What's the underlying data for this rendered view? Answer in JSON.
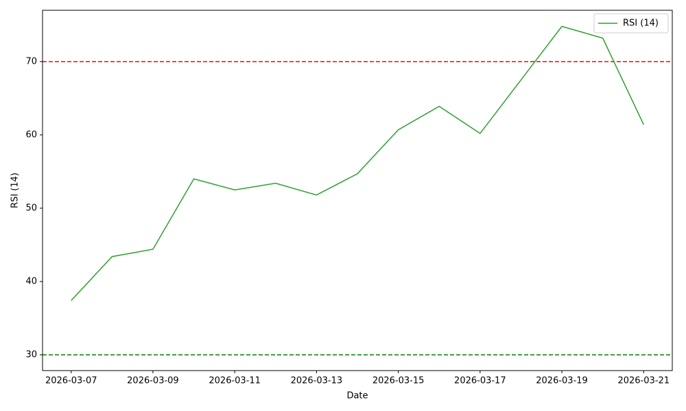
{
  "chart_data": {
    "type": "line",
    "x_label": "Date",
    "y_label": "RSI (14)",
    "x": [
      "2026-03-07",
      "2026-03-08",
      "2026-03-09",
      "2026-03-10",
      "2026-03-11",
      "2026-03-12",
      "2026-03-13",
      "2026-03-14",
      "2026-03-15",
      "2026-03-16",
      "2026-03-17",
      "2026-03-18",
      "2026-03-19",
      "2026-03-20",
      "2026-03-21"
    ],
    "series": [
      {
        "name": "RSI (14)",
        "color": "#2ca02c",
        "values": [
          37.4,
          43.4,
          44.4,
          54.0,
          52.5,
          53.4,
          51.8,
          54.7,
          60.7,
          63.9,
          60.2,
          67.5,
          74.8,
          73.2,
          61.4
        ]
      }
    ],
    "reference_lines": [
      {
        "value": 70,
        "color": "#ff0000"
      },
      {
        "value": 30,
        "color": "#008000"
      }
    ],
    "ylim": [
      27.85,
      77.0
    ],
    "yticks": [
      30,
      40,
      50,
      60,
      70
    ],
    "xticks": [
      "2026-03-07",
      "2026-03-09",
      "2026-03-11",
      "2026-03-13",
      "2026-03-15",
      "2026-03-17",
      "2026-03-19",
      "2026-03-21"
    ],
    "legend": "upper right",
    "grid": false
  }
}
